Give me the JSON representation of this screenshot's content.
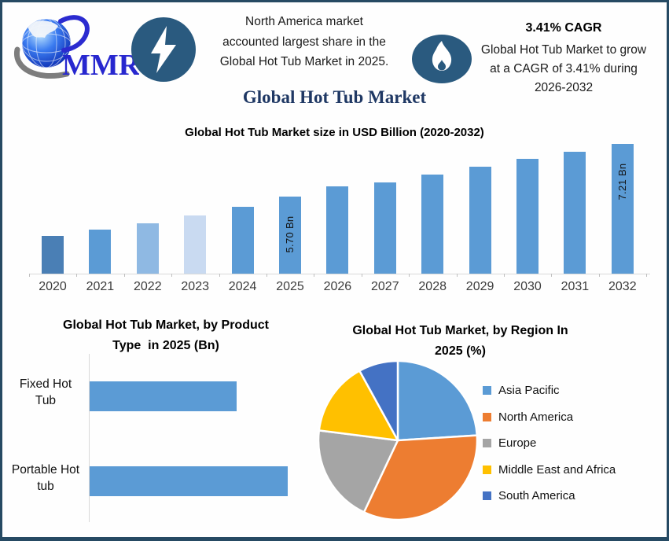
{
  "header": {
    "logo_text": "MMR",
    "note": "North America market\naccounted largest share in the\nGlobal Hot Tub Market in 2025.",
    "cagr_title": "3.41% CAGR",
    "cagr_note": "Global Hot Tub Market to grow\nat a CAGR of 3.41% during\n2026-2032"
  },
  "main_title": "Global Hot Tub Market",
  "colors": {
    "frame_border": "#264a63",
    "title_navy": "#1f3864",
    "icon_circle_blue": "#2a5a7f",
    "primary_bar_blue": "#5b9bd5",
    "logo_blue": "#2727cf"
  },
  "chart_data": [
    {
      "type": "bar",
      "title": "Global Hot Tub Market size in USD Billion (2020-2032)",
      "categories": [
        "2020",
        "2021",
        "2022",
        "2023",
        "2024",
        "2025",
        "2026",
        "2027",
        "2028",
        "2029",
        "2030",
        "2031",
        "2032"
      ],
      "values": [
        4.58,
        4.76,
        4.94,
        5.15,
        5.4,
        5.7,
        5.98,
        6.1,
        6.32,
        6.54,
        6.78,
        6.97,
        7.21
      ],
      "bar_labels": [
        "",
        "",
        "",
        "",
        "",
        "5.70 Bn",
        "",
        "",
        "",
        "",
        "",
        "",
        "7.21 Bn"
      ],
      "bar_colors": [
        "#4a7fb5",
        "#5b9bd5",
        "#8fb9e3",
        "#c9daf1",
        "#5b9bd5",
        "#5b9bd5",
        "#5b9bd5",
        "#5b9bd5",
        "#5b9bd5",
        "#5b9bd5",
        "#5b9bd5",
        "#5b9bd5",
        "#5b9bd5"
      ],
      "xlabel": "",
      "ylabel": "USD Billion",
      "ylim": [
        3.5,
        7.5
      ],
      "grid": false,
      "legend": "none"
    },
    {
      "type": "bar",
      "orientation": "horizontal",
      "title": "Global Hot Tub Market, by Product Type  in 2025 (Bn)",
      "title_display": "Global Hot Tub Market, by Product\nType  in 2025 (Bn)",
      "categories": [
        "Fixed Hot Tub",
        "Portable Hot tub"
      ],
      "category_display": [
        "Fixed Hot\nTub",
        "Portable Hot\ntub"
      ],
      "values": [
        2.43,
        3.27
      ],
      "bar_color": "#5b9bd5",
      "xlim": [
        0,
        3.5
      ],
      "grid": false,
      "legend": "none"
    },
    {
      "type": "pie",
      "title": "Global Hot Tub Market, by Region In 2025 (%)",
      "title_display": "Global Hot Tub Market, by Region In\n2025 (%)",
      "labels": [
        "Asia Pacific",
        "North America",
        "Europe",
        "Middle East and Africa",
        "South America"
      ],
      "values": [
        24,
        33,
        20,
        15,
        8
      ],
      "colors": [
        "#5b9bd5",
        "#ed7d31",
        "#a5a5a5",
        "#ffc000",
        "#4472c4"
      ],
      "legend_position": "right",
      "start_angle_deg": -90,
      "direction": "clockwise"
    }
  ]
}
